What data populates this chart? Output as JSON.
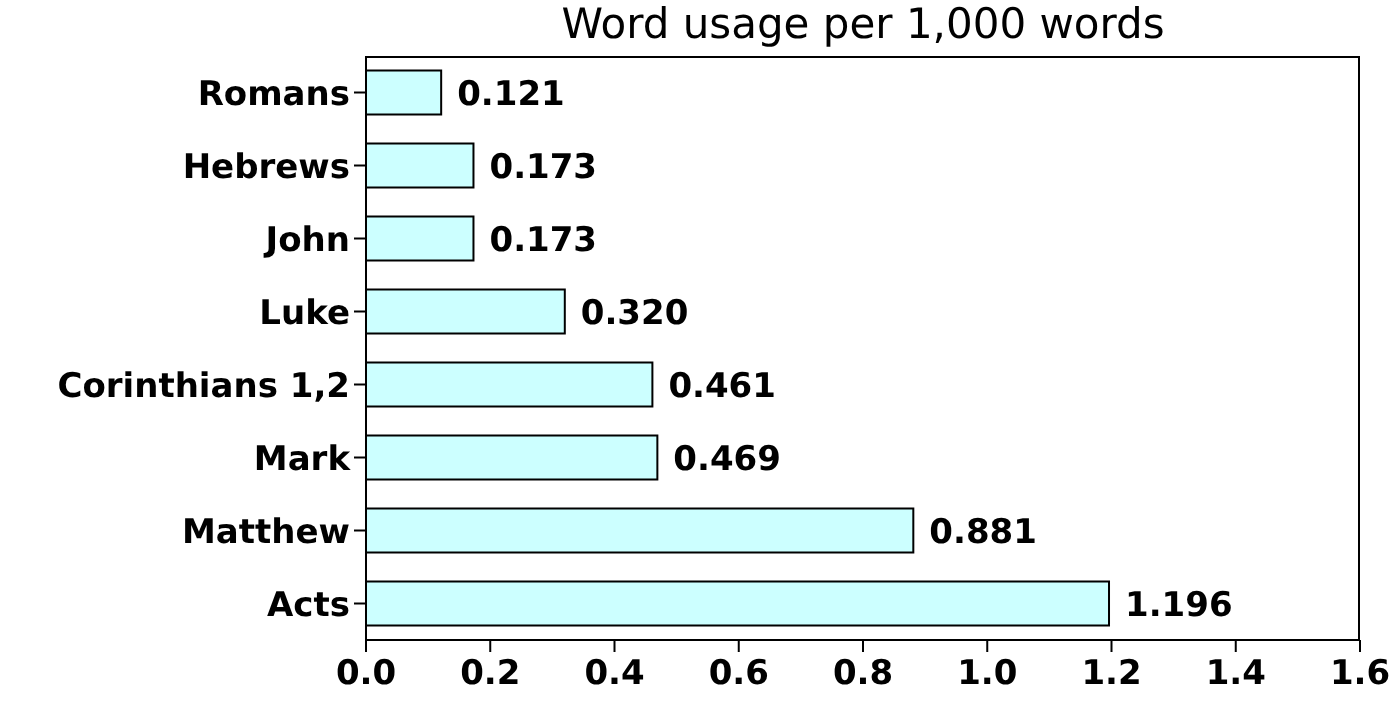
{
  "chart_data": {
    "type": "bar",
    "orientation": "horizontal",
    "title": "Word usage per 1,000 words",
    "categories": [
      "Romans",
      "Hebrews",
      "John",
      "Luke",
      "Corinthians 1,2",
      "Mark",
      "Matthew",
      "Acts"
    ],
    "values": [
      0.121,
      0.173,
      0.173,
      0.32,
      0.461,
      0.469,
      0.881,
      1.196
    ],
    "value_labels": [
      "0.121",
      "0.173",
      "0.173",
      "0.320",
      "0.461",
      "0.469",
      "0.881",
      "1.196"
    ],
    "color": "#ccffff",
    "xlim": [
      0,
      1.6
    ],
    "xticks": [
      {
        "value": 0,
        "label": "0.0"
      },
      {
        "value": 0.2,
        "label": "0.2"
      },
      {
        "value": 0.4,
        "label": "0.4"
      },
      {
        "value": 0.6,
        "label": "0.6"
      },
      {
        "value": 0.8,
        "label": "0.8"
      },
      {
        "value": 1.0,
        "label": "1.0"
      },
      {
        "value": 1.2,
        "label": "1.2"
      },
      {
        "value": 1.4,
        "label": "1.4"
      },
      {
        "value": 1.6,
        "label": "1.6"
      }
    ],
    "grid": false
  }
}
